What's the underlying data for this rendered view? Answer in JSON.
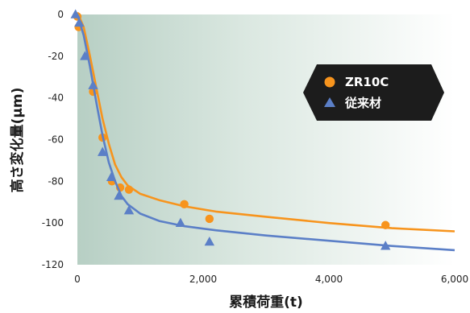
{
  "chart_data": {
    "type": "scatter",
    "x_tick_labels": [
      "0",
      "2,000",
      "4,000",
      "6,000"
    ],
    "x_ticks": [
      0,
      2000,
      4000,
      6000
    ],
    "y_tick_labels": [
      "0",
      "-20",
      "-40",
      "-60",
      "-80",
      "-100",
      "-120"
    ],
    "y_ticks": [
      0,
      -20,
      -40,
      -60,
      -80,
      -100,
      -120
    ],
    "xlim": [
      0,
      6000
    ],
    "ylim": [
      -120,
      0
    ],
    "xlabel": "累積荷重(t)",
    "ylabel": "高さ変化量(μm)",
    "legend_position": "upper-right",
    "grid": false,
    "series": [
      {
        "name": "ZR10C",
        "color": "#f7941d",
        "marker": "circle",
        "points": [
          [
            0,
            -1
          ],
          [
            20,
            -6
          ],
          [
            250,
            -37
          ],
          [
            400,
            -59
          ],
          [
            550,
            -80
          ],
          [
            680,
            -83
          ],
          [
            820,
            -84
          ],
          [
            1700,
            -91
          ],
          [
            2100,
            -98
          ],
          [
            4900,
            -101
          ]
        ],
        "trend": [
          [
            0,
            1
          ],
          [
            100,
            -6
          ],
          [
            200,
            -20
          ],
          [
            300,
            -35
          ],
          [
            400,
            -50
          ],
          [
            500,
            -62
          ],
          [
            600,
            -72
          ],
          [
            700,
            -78
          ],
          [
            800,
            -82
          ],
          [
            1000,
            -86
          ],
          [
            1300,
            -89
          ],
          [
            1700,
            -92
          ],
          [
            2200,
            -94.5
          ],
          [
            3000,
            -97
          ],
          [
            4000,
            -100
          ],
          [
            5000,
            -102.5
          ],
          [
            6000,
            -104
          ]
        ]
      },
      {
        "name": "従来材",
        "color": "#5b7fc7",
        "marker": "triangle",
        "points": [
          [
            -30,
            0
          ],
          [
            30,
            -4
          ],
          [
            120,
            -20
          ],
          [
            250,
            -34
          ],
          [
            400,
            -66
          ],
          [
            540,
            -78
          ],
          [
            660,
            -87
          ],
          [
            820,
            -94
          ],
          [
            1640,
            -100
          ],
          [
            2100,
            -109
          ],
          [
            4900,
            -111
          ]
        ],
        "trend": [
          [
            0,
            0
          ],
          [
            100,
            -10
          ],
          [
            200,
            -25
          ],
          [
            300,
            -42
          ],
          [
            400,
            -58
          ],
          [
            500,
            -71
          ],
          [
            600,
            -80
          ],
          [
            700,
            -87
          ],
          [
            800,
            -91
          ],
          [
            1000,
            -95.5
          ],
          [
            1300,
            -99
          ],
          [
            1700,
            -101.5
          ],
          [
            2200,
            -103.5
          ],
          [
            3000,
            -106
          ],
          [
            4000,
            -108.5
          ],
          [
            5000,
            -111
          ],
          [
            6000,
            -113
          ]
        ]
      }
    ]
  }
}
